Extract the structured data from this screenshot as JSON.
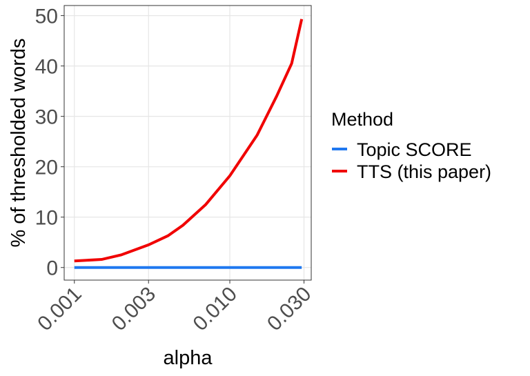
{
  "chart_data": {
    "type": "line",
    "x_label": "alpha",
    "y_label": "% of thresholded words",
    "legend_title": "Method",
    "x": [
      0.001,
      0.0015,
      0.002,
      0.003,
      0.004,
      0.005,
      0.007,
      0.01,
      0.015,
      0.02,
      0.025,
      0.029
    ],
    "series": [
      {
        "name": "Topic SCORE",
        "color": "#1f78f0",
        "values": [
          0,
          0,
          0,
          0,
          0,
          0,
          0,
          0,
          0,
          0,
          0,
          0
        ]
      },
      {
        "name": "TTS (this paper)",
        "color": "#f00000",
        "values": [
          1.3,
          1.6,
          2.5,
          4.5,
          6.3,
          8.4,
          12.5,
          18.2,
          26.3,
          34,
          40.5,
          49.3
        ]
      }
    ],
    "x_log": true,
    "xlim": [
      0.00086,
      0.0334
    ],
    "xticks": [
      0.001,
      0.003,
      {
        "value": 0.01,
        "label": "0.010"
      },
      {
        "value": 0.03,
        "label": "0.030"
      }
    ],
    "ylim": [
      -2.5,
      52
    ],
    "yticks": [
      0,
      10,
      20,
      30,
      40,
      50
    ],
    "grid": true,
    "legend": "right"
  }
}
